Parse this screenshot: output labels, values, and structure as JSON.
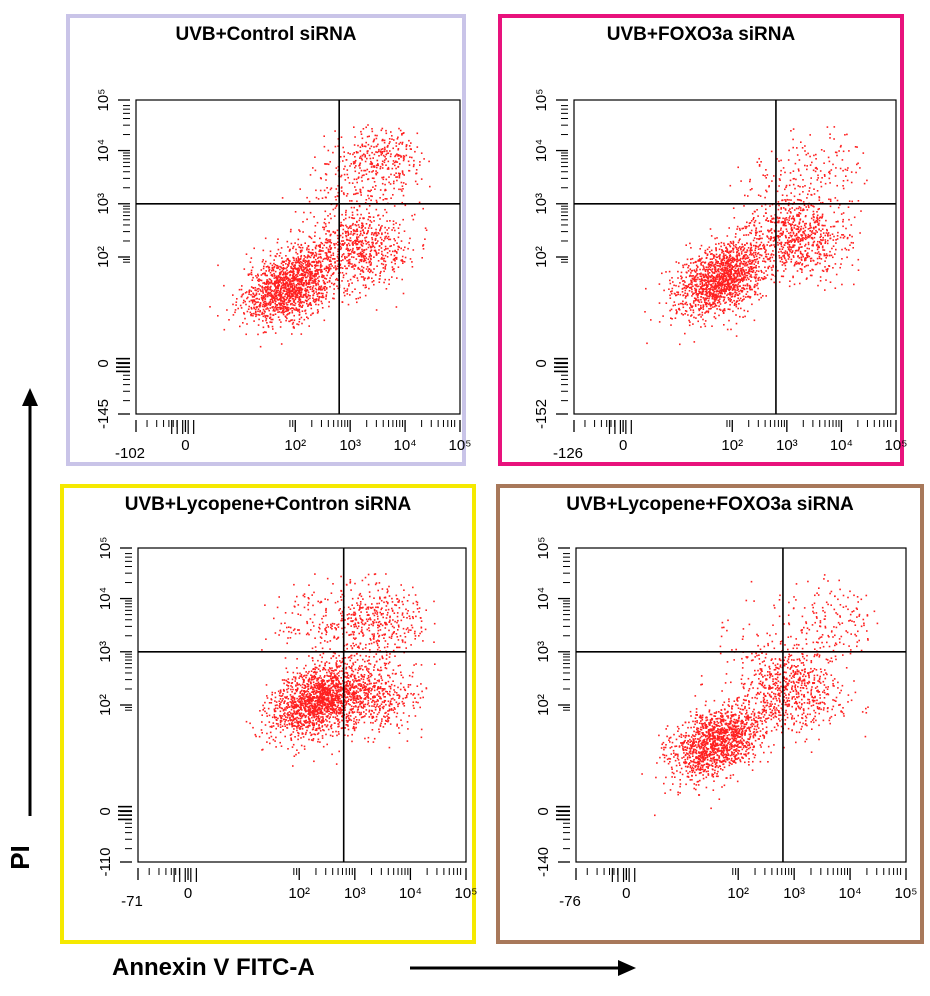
{
  "axis_labels": {
    "x": "Annexin V FITC-A",
    "y": "PI"
  },
  "colors": {
    "points": "#ff2020",
    "axes": "#000000"
  },
  "chart_data": [
    {
      "type": "scatter",
      "title": "UVB+Control siRNA",
      "border_color": "#c9c4e8",
      "x_scale": "biexponential",
      "y_scale": "biexponential",
      "x_ticks": [
        "-102",
        "0",
        "10²",
        "10³",
        "10⁴",
        "10⁵"
      ],
      "y_ticks": [
        "-145",
        "0",
        "10²",
        "10³",
        "10⁴",
        "10⁵"
      ],
      "quadrant_gates": {
        "x": 631,
        "y": 1000
      },
      "clusters": [
        {
          "x": 80,
          "y": 30,
          "n": 1500
        },
        {
          "x": 1600,
          "y": 150,
          "n": 650
        },
        {
          "x": 3500,
          "y": 7000,
          "n": 350
        },
        {
          "x": 700,
          "y": 1500,
          "n": 120
        }
      ]
    },
    {
      "type": "scatter",
      "title": "UVB+FOXO3a siRNA",
      "border_color": "#e8127c",
      "x_scale": "biexponential",
      "y_scale": "biexponential",
      "x_ticks": [
        "-126",
        "0",
        "10²",
        "10³",
        "10⁴",
        "10⁵"
      ],
      "y_ticks": [
        "-152",
        "0",
        "10²",
        "10³",
        "10⁴",
        "10⁵"
      ],
      "quadrant_gates": {
        "x": 631,
        "y": 1000
      },
      "clusters": [
        {
          "x": 60,
          "y": 40,
          "n": 1500
        },
        {
          "x": 1500,
          "y": 250,
          "n": 750
        },
        {
          "x": 5000,
          "y": 5000,
          "n": 120
        },
        {
          "x": 600,
          "y": 2000,
          "n": 60
        }
      ]
    },
    {
      "type": "scatter",
      "title": "UVB+Lycopene+Contron siRNA",
      "border_color": "#f5e900",
      "x_scale": "biexponential",
      "y_scale": "biexponential",
      "x_ticks": [
        "-71",
        "0",
        "10²",
        "10³",
        "10⁴",
        "10⁵"
      ],
      "y_ticks": [
        "-110",
        "0",
        "10²",
        "10³",
        "10⁴",
        "10⁵"
      ],
      "quadrant_gates": {
        "x": 631,
        "y": 1000
      },
      "clusters": [
        {
          "x": 200,
          "y": 120,
          "n": 1500
        },
        {
          "x": 1600,
          "y": 150,
          "n": 600
        },
        {
          "x": 2500,
          "y": 4000,
          "n": 400
        },
        {
          "x": 250,
          "y": 3000,
          "n": 150
        }
      ]
    },
    {
      "type": "scatter",
      "title": "UVB+Lycopene+FOXO3a siRNA",
      "border_color": "#a8785a",
      "x_scale": "biexponential",
      "y_scale": "biexponential",
      "x_ticks": [
        "-76",
        "0",
        "10²",
        "10³",
        "10⁴",
        "10⁵"
      ],
      "y_ticks": [
        "-140",
        "0",
        "10²",
        "10³",
        "10⁴",
        "10⁵"
      ],
      "quadrant_gates": {
        "x": 631,
        "y": 1000
      },
      "clusters": [
        {
          "x": 40,
          "y": 20,
          "n": 1400
        },
        {
          "x": 900,
          "y": 200,
          "n": 650
        },
        {
          "x": 5000,
          "y": 4000,
          "n": 150
        },
        {
          "x": 400,
          "y": 1500,
          "n": 80
        }
      ]
    }
  ]
}
